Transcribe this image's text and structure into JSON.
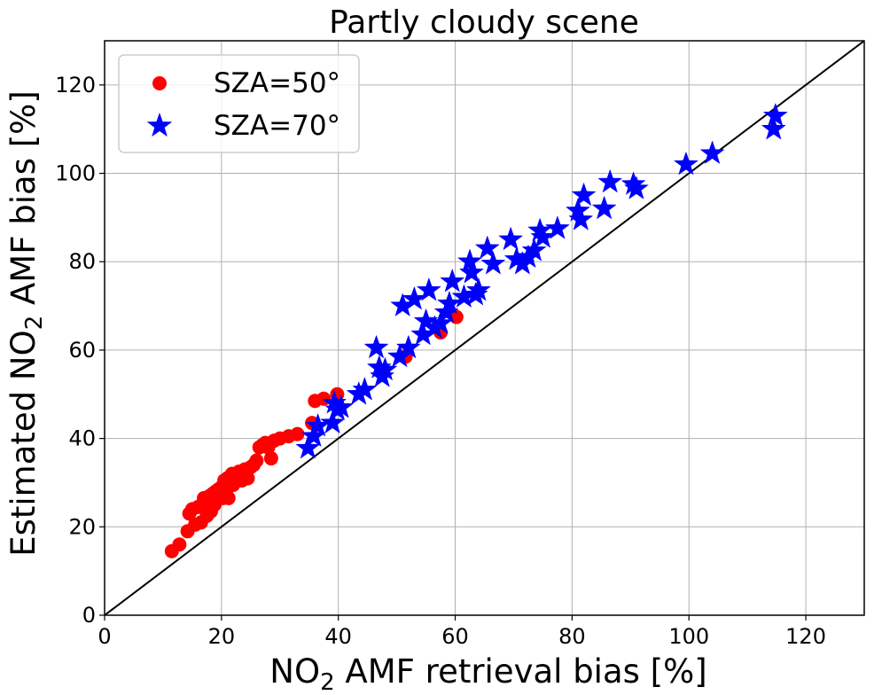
{
  "chart_data": {
    "type": "scatter",
    "title": "Partly cloudy scene",
    "xlabel": {
      "pre": "NO",
      "sub": "2",
      "post": " AMF retrieval bias [%]"
    },
    "ylabel": {
      "pre": "Estimated NO",
      "sub": "2",
      "post": " AMF bias [%]"
    },
    "xlim": [
      0,
      130
    ],
    "ylim": [
      0,
      130
    ],
    "xticks": [
      0,
      20,
      40,
      60,
      80,
      100,
      120
    ],
    "yticks": [
      0,
      20,
      40,
      60,
      80,
      100,
      120
    ],
    "grid": true,
    "legend_position": "top-left",
    "reference_line": "y = x",
    "series": [
      {
        "name": "SZA=50°",
        "marker": "circle",
        "color": "#ff0000",
        "points": [
          [
            11.5,
            14.5
          ],
          [
            12.8,
            16.0
          ],
          [
            14.2,
            19.0
          ],
          [
            14.5,
            23.0
          ],
          [
            15.0,
            24.0
          ],
          [
            15.5,
            20.5
          ],
          [
            16.0,
            24.5
          ],
          [
            16.5,
            21.0
          ],
          [
            17.0,
            26.5
          ],
          [
            17.2,
            24.5
          ],
          [
            17.5,
            22.5
          ],
          [
            17.8,
            25.5
          ],
          [
            18.0,
            27.0
          ],
          [
            18.2,
            23.5
          ],
          [
            18.5,
            27.5
          ],
          [
            18.8,
            25.0
          ],
          [
            19.0,
            28.0
          ],
          [
            19.2,
            26.0
          ],
          [
            19.5,
            28.5
          ],
          [
            19.8,
            27.0
          ],
          [
            20.0,
            29.0
          ],
          [
            20.2,
            26.5
          ],
          [
            20.5,
            30.5
          ],
          [
            20.8,
            28.0
          ],
          [
            21.0,
            31.0
          ],
          [
            21.2,
            26.5
          ],
          [
            21.5,
            30.0
          ],
          [
            21.8,
            32.0
          ],
          [
            22.0,
            29.5
          ],
          [
            22.5,
            31.5
          ],
          [
            23.0,
            32.5
          ],
          [
            23.5,
            30.5
          ],
          [
            24.0,
            33.0
          ],
          [
            24.5,
            31.0
          ],
          [
            25.0,
            33.5
          ],
          [
            25.5,
            34.0
          ],
          [
            26.0,
            35.0
          ],
          [
            26.5,
            38.0
          ],
          [
            27.0,
            38.5
          ],
          [
            27.5,
            39.0
          ],
          [
            28.0,
            38.0
          ],
          [
            28.5,
            35.5
          ],
          [
            29.0,
            39.5
          ],
          [
            30.0,
            40.0
          ],
          [
            31.5,
            40.5
          ],
          [
            33.0,
            41.0
          ],
          [
            35.5,
            43.5
          ],
          [
            36.0,
            48.5
          ],
          [
            37.5,
            49.0
          ],
          [
            39.8,
            50.0
          ],
          [
            51.5,
            58.5
          ],
          [
            57.5,
            64.0
          ],
          [
            60.2,
            67.5
          ]
        ]
      },
      {
        "name": "SZA=70°",
        "marker": "star",
        "color": "#0000ff",
        "points": [
          [
            34.8,
            37.8
          ],
          [
            35.8,
            40.5
          ],
          [
            36.5,
            42.8
          ],
          [
            39.0,
            43.5
          ],
          [
            39.3,
            48.0
          ],
          [
            39.8,
            46.5
          ],
          [
            40.5,
            47.0
          ],
          [
            43.5,
            50.0
          ],
          [
            44.5,
            51.0
          ],
          [
            46.5,
            60.5
          ],
          [
            47.0,
            56.0
          ],
          [
            47.5,
            54.0
          ],
          [
            48.0,
            55.5
          ],
          [
            50.5,
            58.5
          ],
          [
            51.0,
            70.0
          ],
          [
            52.0,
            60.5
          ],
          [
            53.0,
            71.5
          ],
          [
            54.5,
            63.5
          ],
          [
            55.0,
            66.5
          ],
          [
            55.5,
            73.5
          ],
          [
            56.5,
            65.0
          ],
          [
            57.5,
            66.0
          ],
          [
            58.5,
            68.5
          ],
          [
            59.0,
            70.5
          ],
          [
            59.5,
            75.5
          ],
          [
            61.5,
            72.0
          ],
          [
            62.5,
            80.0
          ],
          [
            62.8,
            77.5
          ],
          [
            63.5,
            72.5
          ],
          [
            64.0,
            73.5
          ],
          [
            65.5,
            83.0
          ],
          [
            66.5,
            79.5
          ],
          [
            69.5,
            85.0
          ],
          [
            70.5,
            80.5
          ],
          [
            71.5,
            79.5
          ],
          [
            72.5,
            81.0
          ],
          [
            73.5,
            82.5
          ],
          [
            74.5,
            87.0
          ],
          [
            75.0,
            85.5
          ],
          [
            77.5,
            87.5
          ],
          [
            81.0,
            91.5
          ],
          [
            81.5,
            89.5
          ],
          [
            82.0,
            95.0
          ],
          [
            85.5,
            92.0
          ],
          [
            86.5,
            98.0
          ],
          [
            90.5,
            97.5
          ],
          [
            91.0,
            96.5
          ],
          [
            99.5,
            102.0
          ],
          [
            104.0,
            104.5
          ],
          [
            114.5,
            110.0
          ],
          [
            114.8,
            113.0
          ]
        ]
      }
    ]
  }
}
